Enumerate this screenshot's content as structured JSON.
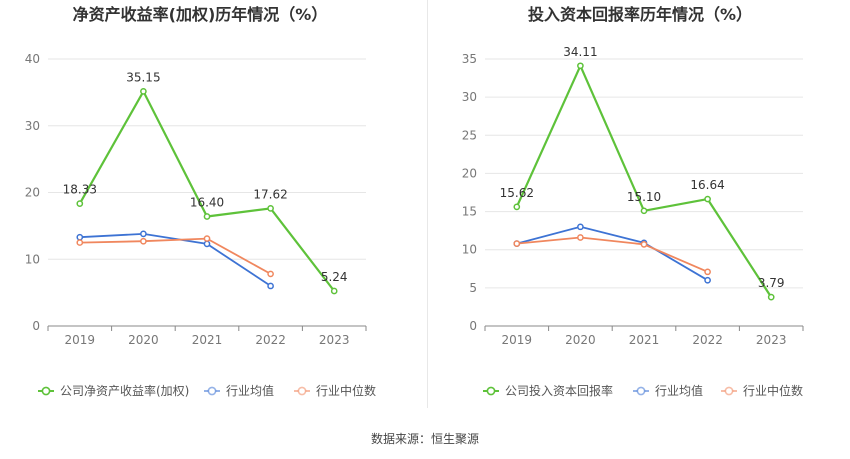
{
  "footer": {
    "source": "数据来源：恒生聚源"
  },
  "chart_data": [
    {
      "type": "line",
      "title": "净资产收益率(加权)历年情况（%）",
      "categories": [
        "2019",
        "2020",
        "2021",
        "2022",
        "2023"
      ],
      "ylim": [
        0,
        40
      ],
      "yticks": [
        0,
        10,
        20,
        30,
        40
      ],
      "grid": true,
      "legend_position": "bottom",
      "series": [
        {
          "name": "公司净资产收益率(加权)",
          "color": "#5ec23a",
          "values": [
            18.33,
            35.15,
            16.4,
            17.62,
            5.24
          ],
          "labels": [
            "18.33",
            "35.15",
            "16.40",
            "17.62",
            "5.24"
          ]
        },
        {
          "name": "行业均值",
          "color": "#3d73d4",
          "values": [
            13.3,
            13.8,
            12.3,
            6.0,
            null
          ]
        },
        {
          "name": "行业中位数",
          "color": "#f0875e",
          "values": [
            12.5,
            12.7,
            13.1,
            7.8,
            null
          ]
        }
      ]
    },
    {
      "type": "line",
      "title": "投入资本回报率历年情况（%）",
      "categories": [
        "2019",
        "2020",
        "2021",
        "2022",
        "2023"
      ],
      "ylim": [
        0,
        35
      ],
      "yticks": [
        0,
        5,
        10,
        15,
        20,
        25,
        30,
        35
      ],
      "grid": true,
      "legend_position": "bottom",
      "series": [
        {
          "name": "公司投入资本回报率",
          "color": "#5ec23a",
          "values": [
            15.62,
            34.11,
            15.1,
            16.64,
            3.79
          ],
          "labels": [
            "15.62",
            "34.11",
            "15.10",
            "16.64",
            "3.79"
          ]
        },
        {
          "name": "行业均值",
          "color": "#3d73d4",
          "values": [
            10.8,
            13.0,
            10.9,
            6.0,
            null
          ]
        },
        {
          "name": "行业中位数",
          "color": "#f0875e",
          "values": [
            10.8,
            11.6,
            10.7,
            7.1,
            null
          ]
        }
      ]
    }
  ]
}
